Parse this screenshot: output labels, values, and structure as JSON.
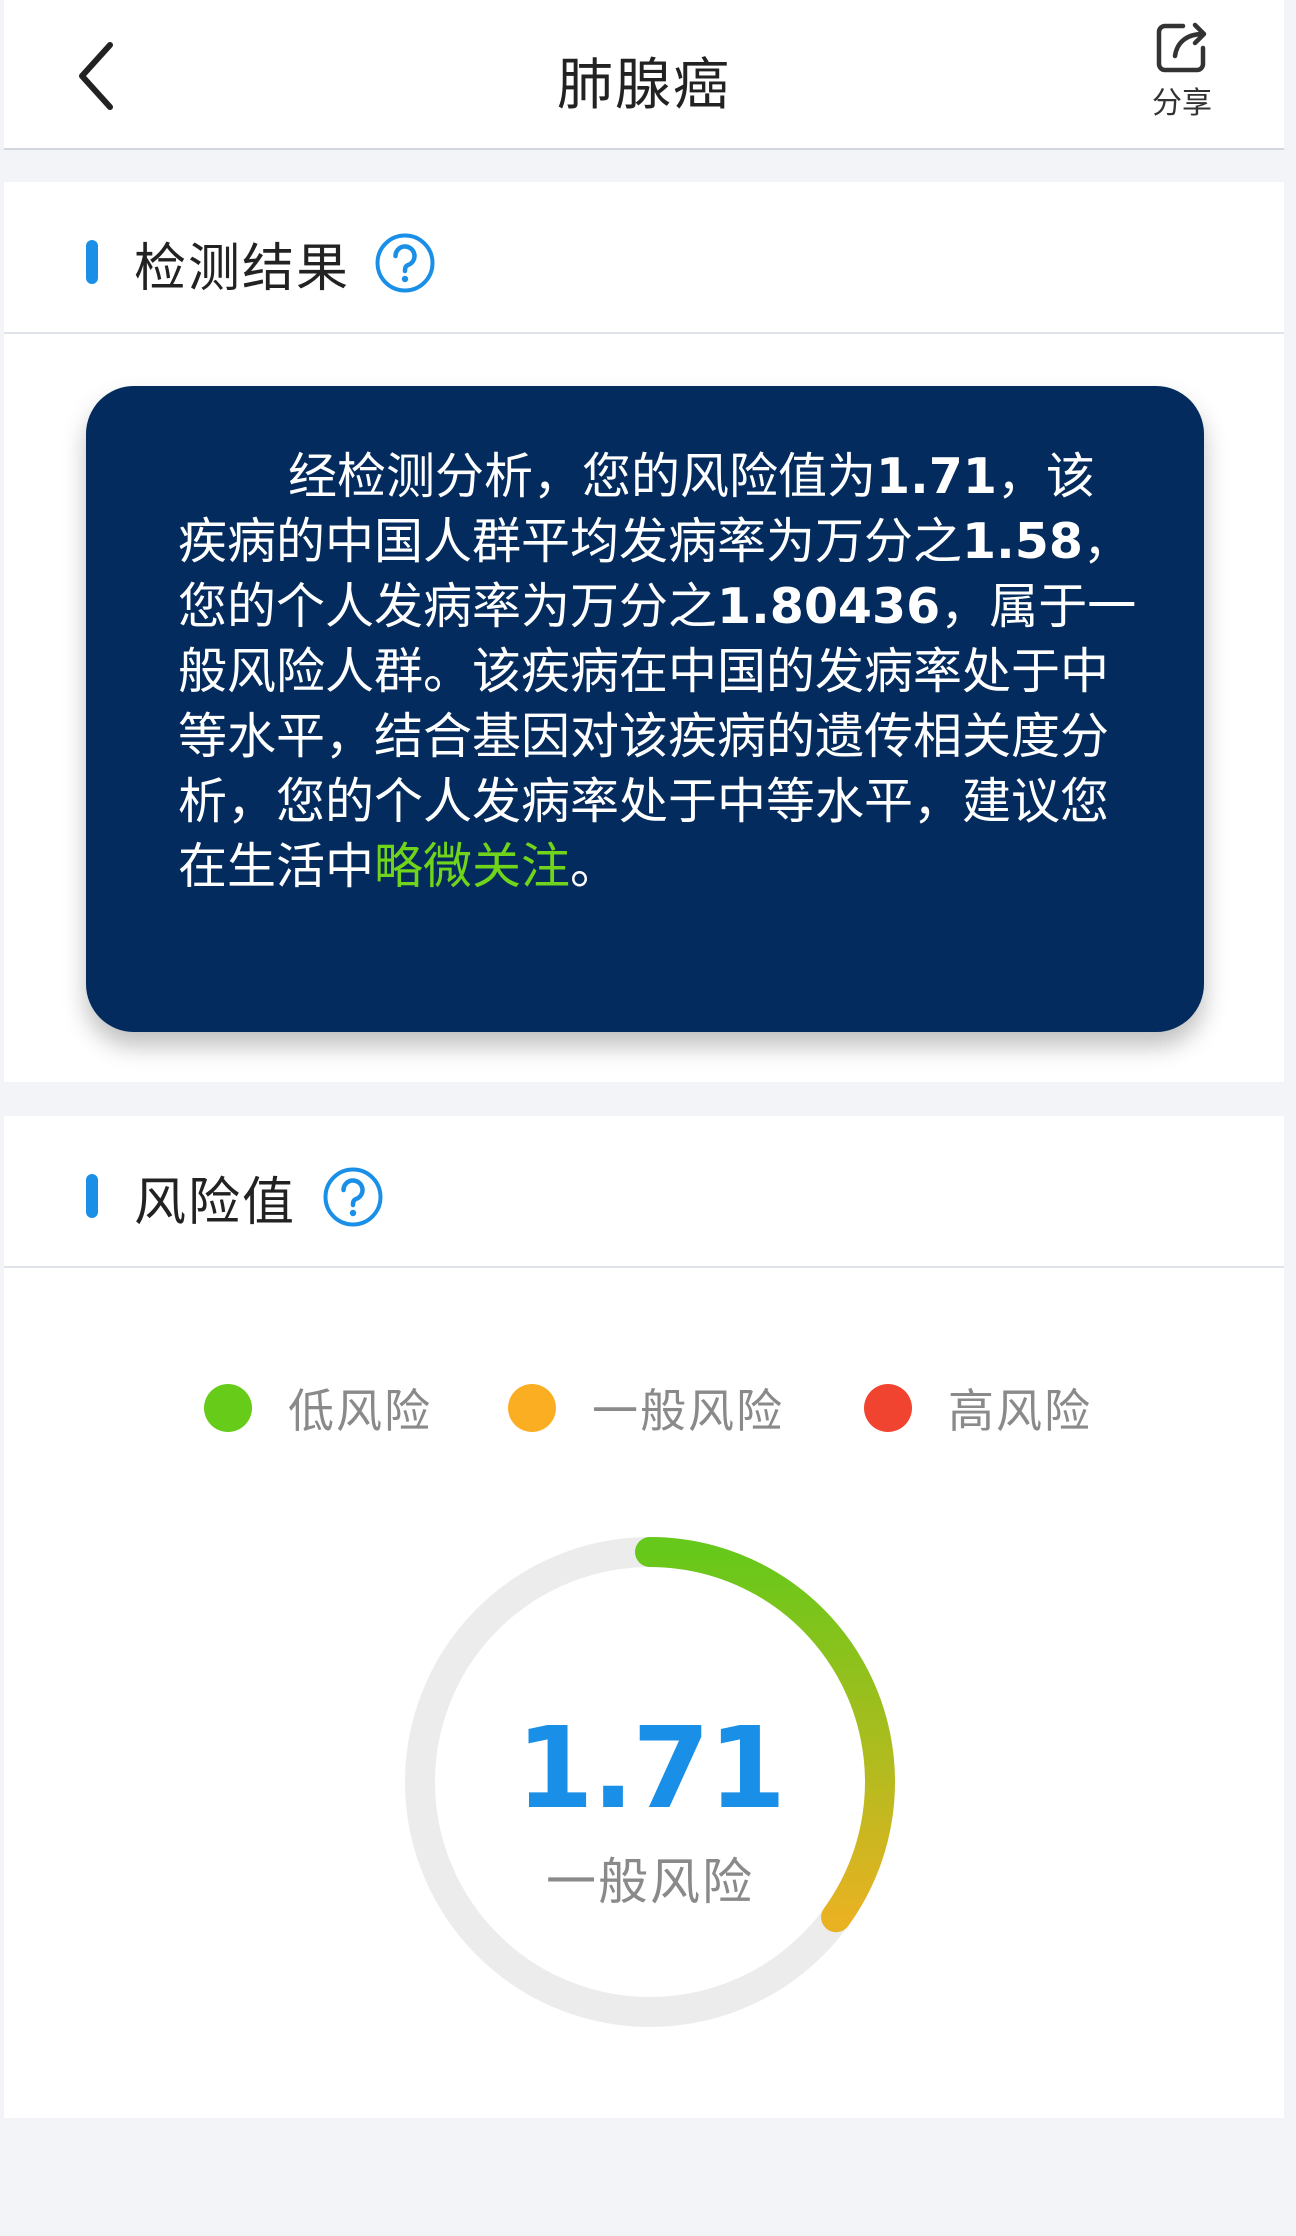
{
  "header": {
    "title": "肺腺癌",
    "share_label": "分享"
  },
  "detection": {
    "section_title": "检测结果",
    "text_prefix": "经检测分析，您的风险值为",
    "risk_value": "1.71",
    "text_part2": "，该疾病的中国人群平均发病率为万分之",
    "avg_rate": "1.58",
    "text_part3": "，您的个人发病率为万分之",
    "personal_rate": "1.80436",
    "text_part4": "，属于一般风险人群。该疾病在中国的发病率处于中等水平，结合基因对该疾病的遗传相关度分析，您的个人发病率处于中等水平，建议您在生活中",
    "advice": "略微关注",
    "text_end": "。",
    "advice_color": "#6fd41a"
  },
  "risk": {
    "section_title": "风险值",
    "legend": [
      {
        "label": "低风险",
        "color": "#66cc19"
      },
      {
        "label": "一般风险",
        "color": "#fbae22"
      },
      {
        "label": "高风险",
        "color": "#f04430"
      }
    ],
    "gauge": {
      "value": "1.71",
      "level": "一般风险",
      "value_color": "#1a8fe8",
      "arc_start_color": "#66c81a",
      "arc_end_color": "#e8b222",
      "track_color": "#ececec",
      "fraction": 0.35
    }
  }
}
